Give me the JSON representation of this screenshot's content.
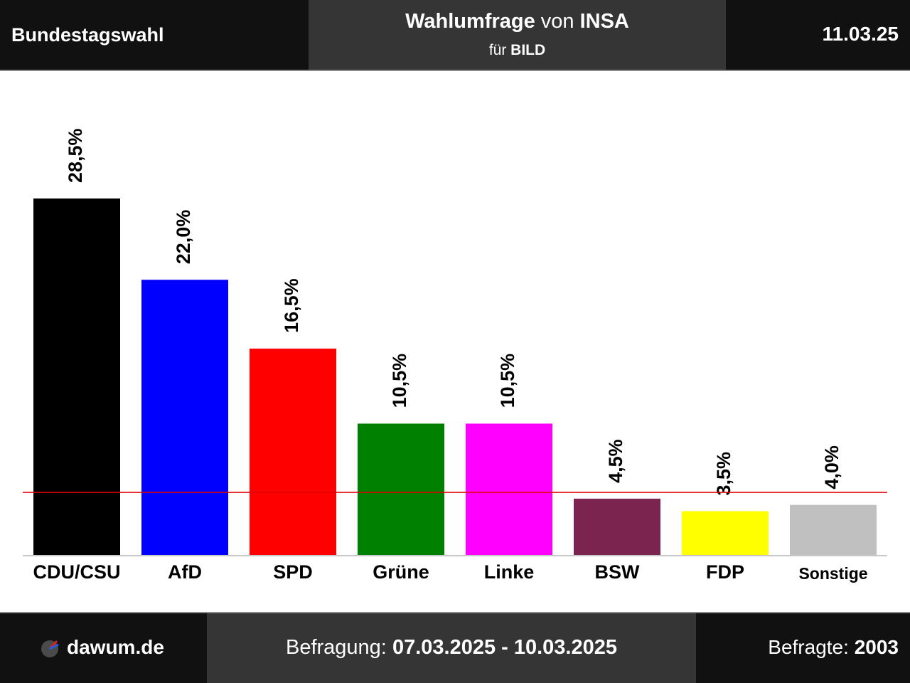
{
  "header": {
    "left_label": "Bundestagswahl",
    "title_main": "Wahlumfrage",
    "title_von": "von",
    "title_institute": "INSA",
    "subtitle_fuer": "für",
    "subtitle_client": "BILD",
    "date": "11.03.25"
  },
  "footer": {
    "site": "dawum.de",
    "survey_label": "Befragung:",
    "survey_period": "07.03.2025 - 10.03.2025",
    "respondents_label": "Befragte:",
    "respondents_value": "2003"
  },
  "chart_data": {
    "type": "bar",
    "categories": [
      "CDU/CSU",
      "AfD",
      "SPD",
      "Grüne",
      "Linke",
      "BSW",
      "FDP",
      "Sonstige"
    ],
    "values": [
      28.5,
      22.0,
      16.5,
      10.5,
      10.5,
      4.5,
      3.5,
      4.0
    ],
    "value_labels": [
      "28,5%",
      "22,0%",
      "16,5%",
      "10,5%",
      "10,5%",
      "4,5%",
      "3,5%",
      "4,0%"
    ],
    "colors": [
      "#000000",
      "#0000ff",
      "#ff0000",
      "#008000",
      "#ff00ff",
      "#7b2450",
      "#ffff00",
      "#c0c0c0"
    ],
    "threshold": 5,
    "threshold_color": "#e00000",
    "ylim": [
      0,
      28.5
    ],
    "grid": false
  }
}
